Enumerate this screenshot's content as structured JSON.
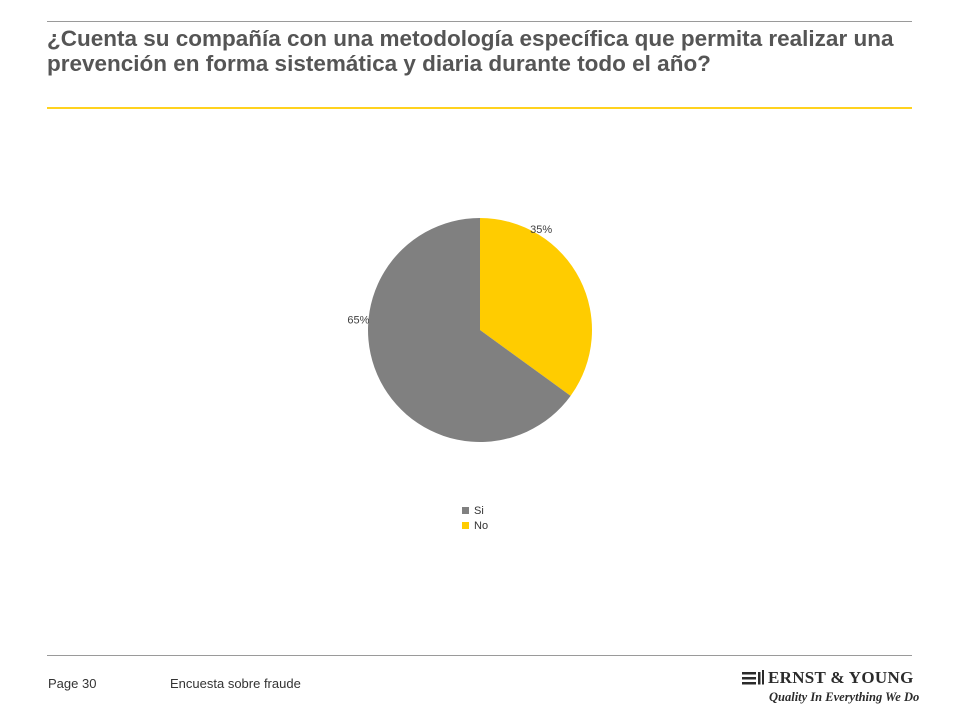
{
  "title": "¿Cuenta su compañía con una metodología específica que permita realizar una prevención en forma sistemática y diaria durante todo el año?",
  "footer": {
    "page": "Page 30",
    "document": "Encuesta sobre fraude"
  },
  "logo": {
    "name": "ERNST & YOUNG",
    "tagline": "Quality In Everything We Do"
  },
  "colors": {
    "accent_yellow": "#ffd21f",
    "si": "#808080",
    "no": "#ffcc00"
  },
  "chart_data": {
    "type": "pie",
    "title": "",
    "slices": [
      {
        "label": "Si",
        "value": 65,
        "display": "65%",
        "color": "#808080"
      },
      {
        "label": "No",
        "value": 35,
        "display": "35%",
        "color": "#ffcc00"
      }
    ],
    "legend_position": "bottom"
  }
}
